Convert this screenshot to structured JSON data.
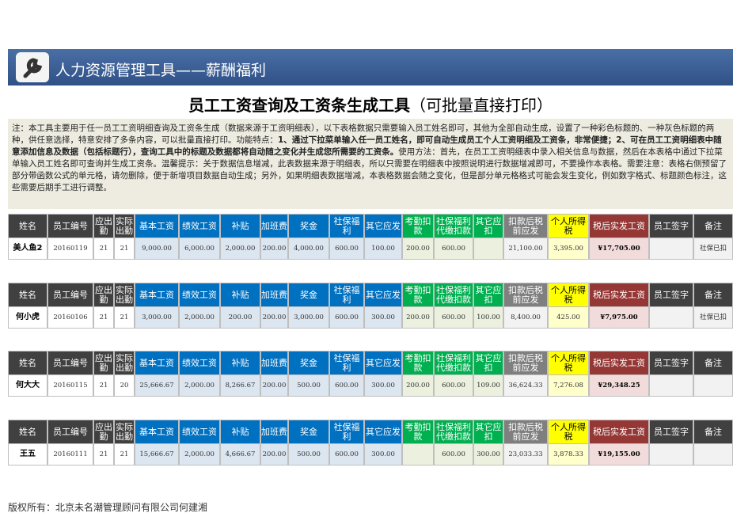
{
  "header": {
    "title": "人力资源管理工具——薪酬福利"
  },
  "title": {
    "main": "员工工资查询及工资条生成工具",
    "suffix": "（可批量直接打印）"
  },
  "note": [
    {
      "text": "注：本工具主要用于任一员工工资明细查询及工资条生成（数据来源于工资明细表），以下表格数据只需要输入员工姓名即可，其他为全部自动生成，设置了一种彩色标题的、一种灰色标题的两种，供任意选择，特意安排了多条内容，可以批量直接打印。功能特点：",
      "bold": false
    },
    {
      "text": "1、通过下拉菜单输入任一员工姓名，即可自动生成员工个人工资明细及工资条，非常便捷；2、可在员工工资明细表中随意添加信息及数据（包括标题行），查询工具中的标题及数据都将自动随之变化并生成您所需要的工资条。",
      "bold": true
    },
    {
      "text": "使用方法：首先，在员工工资明细表中录入相关信息与数据，然后在本表格中通过下拉菜单输入员工姓名即可查询并生成工资条。温馨提示：关于数据信息增减，此表数据来源于明细表，所以只需要在明细表中按照说明进行数据增减即可，不要操作本表格。需要注意：表格右侧预留了部分带函数公式的单元格，请勿删除，便于新增项目数据自动生成；另外，如果明细表数据增减，本表格数据会随之变化，但是部分单元格格式可能会发生变化，例如数字格式、标题颜色标注，这些需要后期手工进行调整。",
      "bold": false
    }
  ],
  "table": {
    "columns": [
      "姓名",
      "员工编号",
      "应出勤",
      "实际出勤",
      "基本工资",
      "绩效工资",
      "补贴",
      "加班费",
      "奖金",
      "社保福利",
      "其它应发",
      "考勤扣款",
      "社保福利代缴扣款",
      "其它应扣",
      "扣款后税前应发",
      "个人所得税",
      "税后实发工资",
      "员工签字",
      "备注"
    ],
    "rows": [
      [
        "美人鱼2",
        "20160119",
        "21",
        "21",
        "9,000.00",
        "6,000.00",
        "2,000.00",
        "200.00",
        "4,000.00",
        "600.00",
        "100.00",
        "200.00",
        "600.00",
        null,
        "21,100.00",
        "3,395.00",
        "¥17,705.00",
        null,
        "社保已扣"
      ],
      [
        "何小虎",
        "20160106",
        "21",
        "21",
        "3,000.00",
        "2,000.00",
        "200.00",
        "200.00",
        "3,000.00",
        "600.00",
        "300.00",
        "200.00",
        "600.00",
        "100.00",
        "8,400.00",
        "425.00",
        "¥7,975.00",
        null,
        "社保已扣"
      ],
      [
        "何大大",
        "20160115",
        "21",
        "20",
        "25,666.67",
        "2,000.00",
        "8,266.67",
        "200.00",
        "500.00",
        "600.00",
        "300.00",
        "200.00",
        "600.00",
        "109.00",
        "36,624.33",
        "7,276.08",
        "¥29,348.25",
        null,
        null
      ],
      [
        "王五",
        "20160111",
        "21",
        "21",
        "15,666.67",
        "2,000.00",
        "4,666.67",
        "200.00",
        "500.00",
        "600.00",
        "300.00",
        null,
        "600.00",
        "300.00",
        "23,033.33",
        "3,878.33",
        "¥19,155.00",
        null,
        null
      ]
    ]
  },
  "footer": "版权所有：北京未名潮管理顾问有限公司何建湘"
}
